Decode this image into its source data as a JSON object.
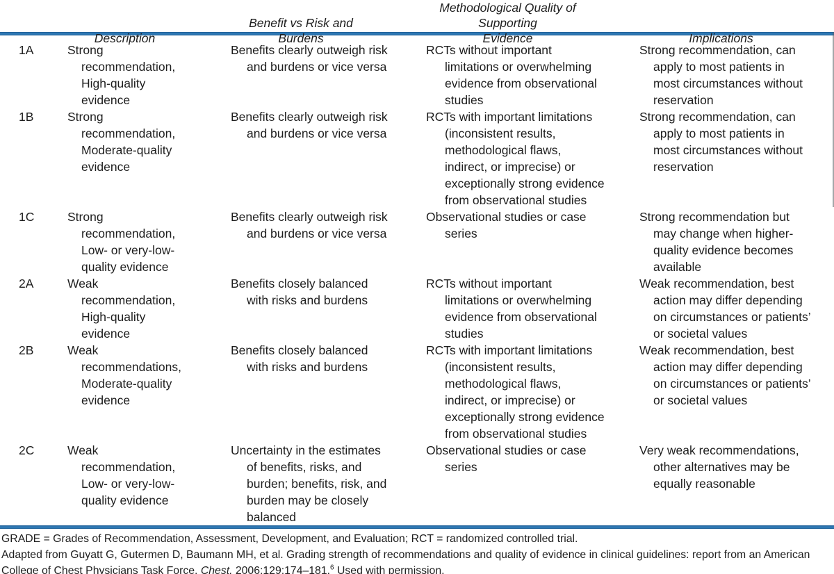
{
  "colors": {
    "rule_blue": "#2f7ab6",
    "text": "#1e1e1e",
    "background": "#ffffff"
  },
  "table": {
    "headers": {
      "grade": "",
      "description": "Description",
      "benefit": "Benefit vs Risk and Burdens",
      "quality": [
        "Methodological Quality of Supporting",
        "Evidence"
      ],
      "implications": "Implications"
    },
    "rows": [
      {
        "grade": "1A",
        "description": [
          "Strong",
          "recommendation,",
          "High-quality",
          "evidence"
        ],
        "benefit": [
          "Benefits clearly outweigh risk",
          "and burdens or vice versa"
        ],
        "quality": [
          "RCTs without important",
          "limitations or overwhelming",
          "evidence from observational",
          "studies"
        ],
        "implications": [
          "Strong recommendation, can",
          "apply to most patients in",
          "most circumstances without",
          "reservation"
        ]
      },
      {
        "grade": "1B",
        "description": [
          "Strong",
          "recommendation,",
          "Moderate-quality",
          "evidence"
        ],
        "benefit": [
          "Benefits clearly outweigh risk",
          "and burdens or vice versa"
        ],
        "quality": [
          "RCTs with important limitations",
          "(inconsistent results,",
          "methodological flaws,",
          "indirect, or imprecise) or",
          "exceptionally strong evidence",
          "from observational studies"
        ],
        "implications": [
          "Strong recommendation, can",
          "apply to most patients in",
          "most circumstances without",
          "reservation"
        ]
      },
      {
        "grade": "1C",
        "description": [
          "Strong",
          "recommendation,",
          "Low- or very-low-",
          "quality evidence"
        ],
        "benefit": [
          "Benefits clearly outweigh risk",
          "and burdens or vice versa"
        ],
        "quality": [
          "Observational studies or case",
          "series"
        ],
        "implications": [
          "Strong recommendation but",
          "may change when higher-",
          "quality evidence becomes",
          "available"
        ]
      },
      {
        "grade": "2A",
        "description": [
          "Weak",
          "recommendation,",
          "High-quality",
          "evidence"
        ],
        "benefit": [
          "Benefits closely balanced",
          "with risks and burdens"
        ],
        "quality": [
          "RCTs without important",
          "limitations or overwhelming",
          "evidence from observational",
          "studies"
        ],
        "implications": [
          "Weak recommendation, best",
          "action may differ depending",
          "on circumstances or patients’",
          "or societal values"
        ]
      },
      {
        "grade": "2B",
        "description": [
          "Weak",
          "recommendations,",
          "Moderate-quality",
          "evidence"
        ],
        "benefit": [
          "Benefits closely balanced",
          "with risks and burdens"
        ],
        "quality": [
          "RCTs with important limitations",
          "(inconsistent results,",
          "methodological flaws,",
          "indirect, or imprecise) or",
          "exceptionally strong evidence",
          "from observational studies"
        ],
        "implications": [
          "Weak recommendation, best",
          "action may differ depending",
          "on circumstances or patients’",
          "or societal values"
        ]
      },
      {
        "grade": "2C",
        "description": [
          "Weak",
          "recommendation,",
          "Low- or very-low-",
          "quality evidence"
        ],
        "benefit": [
          "Uncertainty in the estimates",
          "of benefits, risks, and",
          "burden; benefits, risk, and",
          "burden may be closely",
          "balanced"
        ],
        "quality": [
          "Observational studies or case",
          "series"
        ],
        "implications": [
          "Very weak recommendations,",
          "other alternatives may be",
          "equally reasonable"
        ]
      }
    ]
  },
  "footnotes": {
    "abbreviations": "GRADE = Grades of Recommendation, Assessment, Development, and Evaluation; RCT = randomized controlled trial.",
    "adapted_line1": "Adapted from Guyatt G, Gutermen D, Baumann MH, et al. Grading strength of recommendations and quality of evidence in clinical guidelines: report from an American",
    "adapted_line2_prefix": "College of Chest Physicians Task Force. ",
    "journal": "Chest.",
    "adapted_line2_citation": " 2006;129:174–181.",
    "reference_number": "6",
    "adapted_line2_suffix": " Used with permission."
  }
}
